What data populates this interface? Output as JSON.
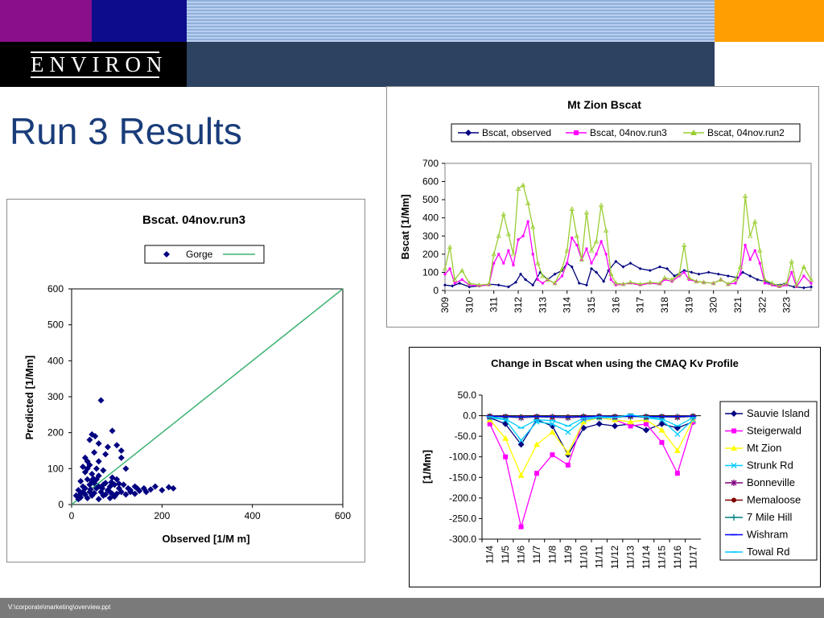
{
  "header": {
    "logo_text": "ENVIRON"
  },
  "slide": {
    "title": "Run 3 Results"
  },
  "footer": {
    "path": "V:\\corporate\\marketing\\overview.ppt"
  },
  "colors": {
    "title": "#1a3d7a",
    "navy": "#000080",
    "magenta": "#ff00ff",
    "yellowgreen": "#9acd32",
    "green": "#3cb371"
  },
  "chart_data": [
    {
      "type": "scatter",
      "title": "Bscat. 04nov.run3",
      "xlabel": "Observed [1/M m]",
      "ylabel": "Predicted [1/Mm]",
      "xlim": [
        0,
        600
      ],
      "ylim": [
        0,
        600
      ],
      "xticks": [
        "0",
        "200",
        "400",
        "600"
      ],
      "yticks": [
        "0",
        "100",
        "200",
        "300",
        "400",
        "500",
        "600"
      ],
      "legend": [
        "Gorge"
      ],
      "legend_position": "top",
      "grid": false,
      "series": [
        {
          "name": "Gorge",
          "points": [
            [
              65,
              290
            ],
            [
              45,
              195
            ],
            [
              52,
              190
            ],
            [
              90,
              205
            ],
            [
              40,
              180
            ],
            [
              60,
              170
            ],
            [
              100,
              165
            ],
            [
              80,
              160
            ],
            [
              110,
              150
            ],
            [
              50,
              145
            ],
            [
              30,
              130
            ],
            [
              35,
              120
            ],
            [
              40,
              110
            ],
            [
              25,
              105
            ],
            [
              55,
              100
            ],
            [
              70,
              95
            ],
            [
              30,
              90
            ],
            [
              45,
              85
            ],
            [
              120,
              100
            ],
            [
              60,
              80
            ],
            [
              90,
              75
            ],
            [
              35,
              70
            ],
            [
              20,
              65
            ],
            [
              50,
              60
            ],
            [
              75,
              60
            ],
            [
              100,
              70
            ],
            [
              40,
              55
            ],
            [
              25,
              50
            ],
            [
              60,
              50
            ],
            [
              85,
              50
            ],
            [
              115,
              55
            ],
            [
              140,
              50
            ],
            [
              30,
              45
            ],
            [
              55,
              45
            ],
            [
              80,
              40
            ],
            [
              105,
              45
            ],
            [
              130,
              40
            ],
            [
              160,
              45
            ],
            [
              185,
              50
            ],
            [
              215,
              48
            ],
            [
              225,
              45
            ],
            [
              15,
              40
            ],
            [
              40,
              35
            ],
            [
              65,
              35
            ],
            [
              90,
              30
            ],
            [
              110,
              35
            ],
            [
              150,
              38
            ],
            [
              175,
              42
            ],
            [
              20,
              30
            ],
            [
              45,
              25
            ],
            [
              70,
              25
            ],
            [
              95,
              22
            ],
            [
              120,
              28
            ],
            [
              20,
              20
            ],
            [
              35,
              18
            ],
            [
              60,
              15
            ],
            [
              85,
              18
            ],
            [
              15,
              15
            ],
            [
              30,
              28
            ],
            [
              50,
              32
            ],
            [
              75,
              28
            ],
            [
              100,
              30
            ],
            [
              130,
              35
            ],
            [
              165,
              35
            ],
            [
              200,
              40
            ],
            [
              10,
              25
            ],
            [
              70,
              55
            ],
            [
              55,
              70
            ],
            [
              45,
              65
            ],
            [
              95,
              55
            ],
            [
              125,
              45
            ],
            [
              145,
              45
            ],
            [
              25,
              35
            ],
            [
              85,
              35
            ],
            [
              140,
              30
            ],
            [
              60,
              120
            ],
            [
              110,
              130
            ],
            [
              75,
              140
            ],
            [
              35,
              100
            ],
            [
              48,
              72
            ],
            [
              68,
              45
            ],
            [
              42,
              42
            ],
            [
              88,
              62
            ],
            [
              105,
              58
            ]
          ]
        }
      ],
      "reference_line": [
        [
          0,
          0
        ],
        [
          600,
          600
        ]
      ]
    },
    {
      "type": "line",
      "title": "Mt Zion Bscat",
      "ylabel": "Bscat [1/Mm]",
      "xlabel": "",
      "xlim": [
        309,
        324
      ],
      "ylim": [
        0,
        700
      ],
      "xticks": [
        "309",
        "310",
        "311",
        "312",
        "313",
        "314",
        "315",
        "316",
        "317",
        "318",
        "319",
        "320",
        "321",
        "322",
        "323"
      ],
      "yticks": [
        "0",
        "100",
        "200",
        "300",
        "400",
        "500",
        "600",
        "700"
      ],
      "legend_position": "top",
      "grid": false,
      "series": [
        {
          "name": "Bscat, observed",
          "color": "#000080",
          "x": [
            309.0,
            309.3,
            309.6,
            310.0,
            310.4,
            310.8,
            311.2,
            311.6,
            311.9,
            312.1,
            312.3,
            312.6,
            312.9,
            313.2,
            313.5,
            313.8,
            314.0,
            314.2,
            314.5,
            314.8,
            315.0,
            315.2,
            315.5,
            315.7,
            316.0,
            316.3,
            316.6,
            317.0,
            317.4,
            317.8,
            318.1,
            318.4,
            318.8,
            319.1,
            319.4,
            319.8,
            320.2,
            320.6,
            321.0,
            321.2,
            321.5,
            321.8,
            322.1,
            322.5,
            322.9,
            323.3,
            323.7,
            324.0
          ],
          "y": [
            30,
            25,
            40,
            20,
            25,
            35,
            30,
            20,
            45,
            90,
            60,
            30,
            100,
            60,
            90,
            110,
            150,
            130,
            40,
            30,
            120,
            100,
            50,
            110,
            160,
            130,
            150,
            120,
            110,
            130,
            120,
            80,
            110,
            100,
            90,
            100,
            90,
            80,
            70,
            100,
            80,
            60,
            50,
            30,
            35,
            20,
            15,
            20
          ]
        },
        {
          "name": "Bscat, 04nov.run3",
          "color": "#ff00ff",
          "x": [
            309.0,
            309.2,
            309.4,
            309.7,
            310.0,
            310.4,
            310.8,
            311.0,
            311.2,
            311.4,
            311.6,
            311.8,
            312.0,
            312.2,
            312.4,
            312.6,
            312.8,
            313.0,
            313.2,
            313.5,
            313.8,
            314.0,
            314.2,
            314.4,
            314.6,
            314.8,
            315.0,
            315.2,
            315.4,
            315.6,
            315.8,
            316.0,
            316.3,
            316.6,
            317.0,
            317.4,
            317.8,
            318.0,
            318.3,
            318.6,
            318.8,
            319.0,
            319.3,
            319.6,
            320.0,
            320.3,
            320.6,
            320.9,
            321.1,
            321.3,
            321.5,
            321.7,
            321.9,
            322.1,
            322.4,
            322.7,
            323.0,
            323.2,
            323.4,
            323.7,
            324.0
          ],
          "y": [
            90,
            120,
            40,
            60,
            30,
            25,
            30,
            150,
            200,
            150,
            220,
            140,
            280,
            300,
            380,
            200,
            60,
            40,
            60,
            40,
            80,
            150,
            290,
            250,
            170,
            230,
            150,
            200,
            270,
            200,
            60,
            30,
            35,
            40,
            30,
            40,
            35,
            60,
            50,
            80,
            100,
            60,
            50,
            45,
            40,
            60,
            35,
            40,
            90,
            250,
            170,
            220,
            150,
            40,
            30,
            20,
            30,
            100,
            20,
            80,
            40
          ]
        },
        {
          "name": "Bscat, 04nov.run2",
          "color": "#9acd32",
          "x": [
            309.0,
            309.2,
            309.4,
            309.7,
            310.0,
            310.4,
            310.8,
            311.0,
            311.2,
            311.4,
            311.6,
            311.8,
            312.0,
            312.2,
            312.4,
            312.6,
            312.8,
            313.0,
            313.2,
            313.5,
            313.8,
            314.0,
            314.2,
            314.4,
            314.6,
            314.8,
            315.0,
            315.2,
            315.4,
            315.6,
            315.8,
            316.0,
            316.3,
            316.6,
            317.0,
            317.4,
            317.8,
            318.0,
            318.3,
            318.6,
            318.8,
            319.0,
            319.3,
            319.6,
            320.0,
            320.3,
            320.6,
            320.9,
            321.1,
            321.3,
            321.5,
            321.7,
            321.9,
            322.1,
            322.4,
            322.7,
            323.0,
            323.2,
            323.4,
            323.7,
            324.0
          ],
          "y": [
            120,
            240,
            60,
            110,
            40,
            30,
            35,
            200,
            300,
            420,
            310,
            200,
            560,
            580,
            480,
            350,
            150,
            80,
            60,
            40,
            120,
            220,
            450,
            300,
            170,
            430,
            220,
            270,
            470,
            330,
            90,
            40,
            35,
            45,
            35,
            45,
            40,
            70,
            60,
            90,
            250,
            70,
            50,
            45,
            40,
            60,
            35,
            60,
            130,
            520,
            300,
            380,
            220,
            60,
            40,
            25,
            40,
            160,
            30,
            130,
            60
          ]
        }
      ]
    },
    {
      "type": "line",
      "title": "Change in Bscat when using the CMAQ Kv Profile",
      "ylabel": "[1/Mm]",
      "xlabel": "",
      "categories": [
        "11/4",
        "11/5",
        "11/6",
        "11/7",
        "11/8",
        "11/9",
        "11/10",
        "11/11",
        "11/12",
        "11/13",
        "11/14",
        "11/15",
        "11/16",
        "11/17"
      ],
      "ylim": [
        -300,
        50
      ],
      "yticks": [
        "50.0",
        "0.0",
        "-50.0",
        "-100.0",
        "-150.0",
        "-200.0",
        "-250.0",
        "-300.0"
      ],
      "legend_position": "right",
      "grid": false,
      "series": [
        {
          "name": "Sauvie Island",
          "color": "#000080",
          "marker": "diamond",
          "values": [
            -5,
            -20,
            -70,
            -10,
            -25,
            -95,
            -30,
            -20,
            -25,
            -20,
            -35,
            -20,
            -30,
            -15
          ]
        },
        {
          "name": "Steigerwald",
          "color": "#ff00ff",
          "marker": "square",
          "values": [
            -20,
            -100,
            -270,
            -140,
            -95,
            -120,
            -10,
            -5,
            -10,
            -25,
            -20,
            -65,
            -140,
            -15
          ]
        },
        {
          "name": "Mt Zion",
          "color": "#ffff00",
          "marker": "triangle",
          "values": [
            -10,
            -55,
            -145,
            -70,
            -40,
            -90,
            -15,
            -5,
            -10,
            -15,
            -10,
            -35,
            -85,
            -10
          ]
        },
        {
          "name": "Strunk Rd",
          "color": "#00ccff",
          "marker": "x",
          "values": [
            -5,
            -10,
            -60,
            -15,
            -20,
            -40,
            -10,
            -5,
            -5,
            0,
            -5,
            -10,
            -45,
            -10
          ]
        },
        {
          "name": "Bonneville",
          "color": "#800080",
          "marker": "star",
          "values": [
            -2,
            -3,
            -5,
            -3,
            -4,
            -5,
            -3,
            -2,
            -3,
            -2,
            -3,
            -3,
            -4,
            -2
          ]
        },
        {
          "name": "Memaloose",
          "color": "#800000",
          "marker": "circle",
          "values": [
            -1,
            -2,
            -3,
            -2,
            -3,
            -3,
            -2,
            -1,
            -2,
            -1,
            -2,
            -2,
            -3,
            -1
          ]
        },
        {
          "name": "7 Mile Hill",
          "color": "#008080",
          "marker": "plus",
          "values": [
            -2,
            -3,
            -4,
            -3,
            -3,
            -4,
            -2,
            -2,
            -3,
            -2,
            -3,
            -3,
            -3,
            -2
          ]
        },
        {
          "name": "Wishram",
          "color": "#0000ff",
          "marker": "dash",
          "values": [
            -1,
            -2,
            -3,
            -2,
            -2,
            -3,
            -2,
            -1,
            -2,
            -1,
            -2,
            -2,
            -2,
            -1
          ]
        },
        {
          "name": "Towal Rd",
          "color": "#00ccff",
          "marker": "dash",
          "values": [
            -3,
            -8,
            -30,
            -10,
            -12,
            -25,
            -6,
            -3,
            -4,
            2,
            -3,
            -8,
            -25,
            -5
          ]
        }
      ]
    }
  ]
}
